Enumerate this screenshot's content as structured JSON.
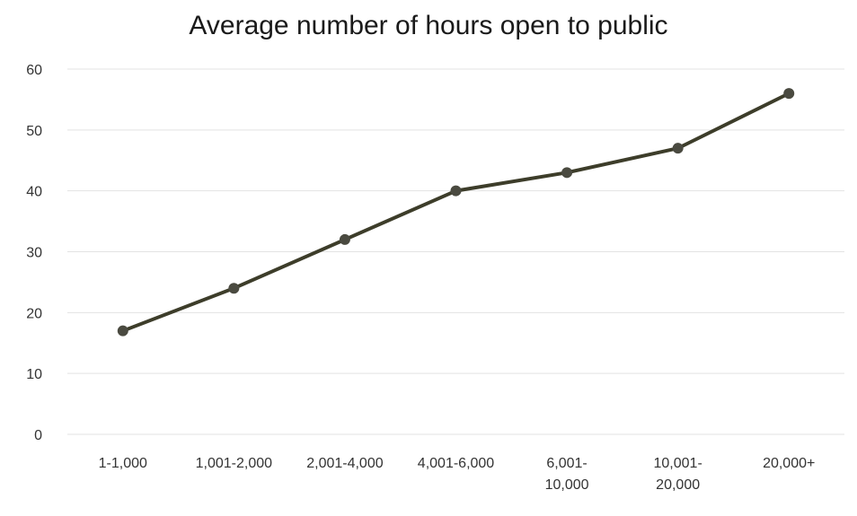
{
  "chart_data": {
    "type": "line",
    "title": "Average number of hours open to public",
    "categories": [
      "1-1,000",
      "1,001-2,000",
      "2,001-4,000",
      "4,001-6,000",
      "6,001-10,000",
      "10,001-20,000",
      "20,000+"
    ],
    "category_label_lines": [
      [
        "1-1,000"
      ],
      [
        "1,001-2,000"
      ],
      [
        "2,001-4,000"
      ],
      [
        "4,001-6,000"
      ],
      [
        "6,001-",
        "10,000"
      ],
      [
        "10,001-",
        "20,000"
      ],
      [
        "20,000+"
      ]
    ],
    "series": [
      {
        "values": [
          17,
          24,
          32,
          40,
          43,
          47,
          56
        ]
      }
    ],
    "yticks": [
      0,
      10,
      20,
      30,
      40,
      50,
      60
    ],
    "ylim": [
      0,
      60
    ],
    "xlabel": "",
    "ylabel": "",
    "grid": true,
    "legend": "none",
    "line_color": "#3d3d2a",
    "marker_color": "#4a4a40"
  }
}
